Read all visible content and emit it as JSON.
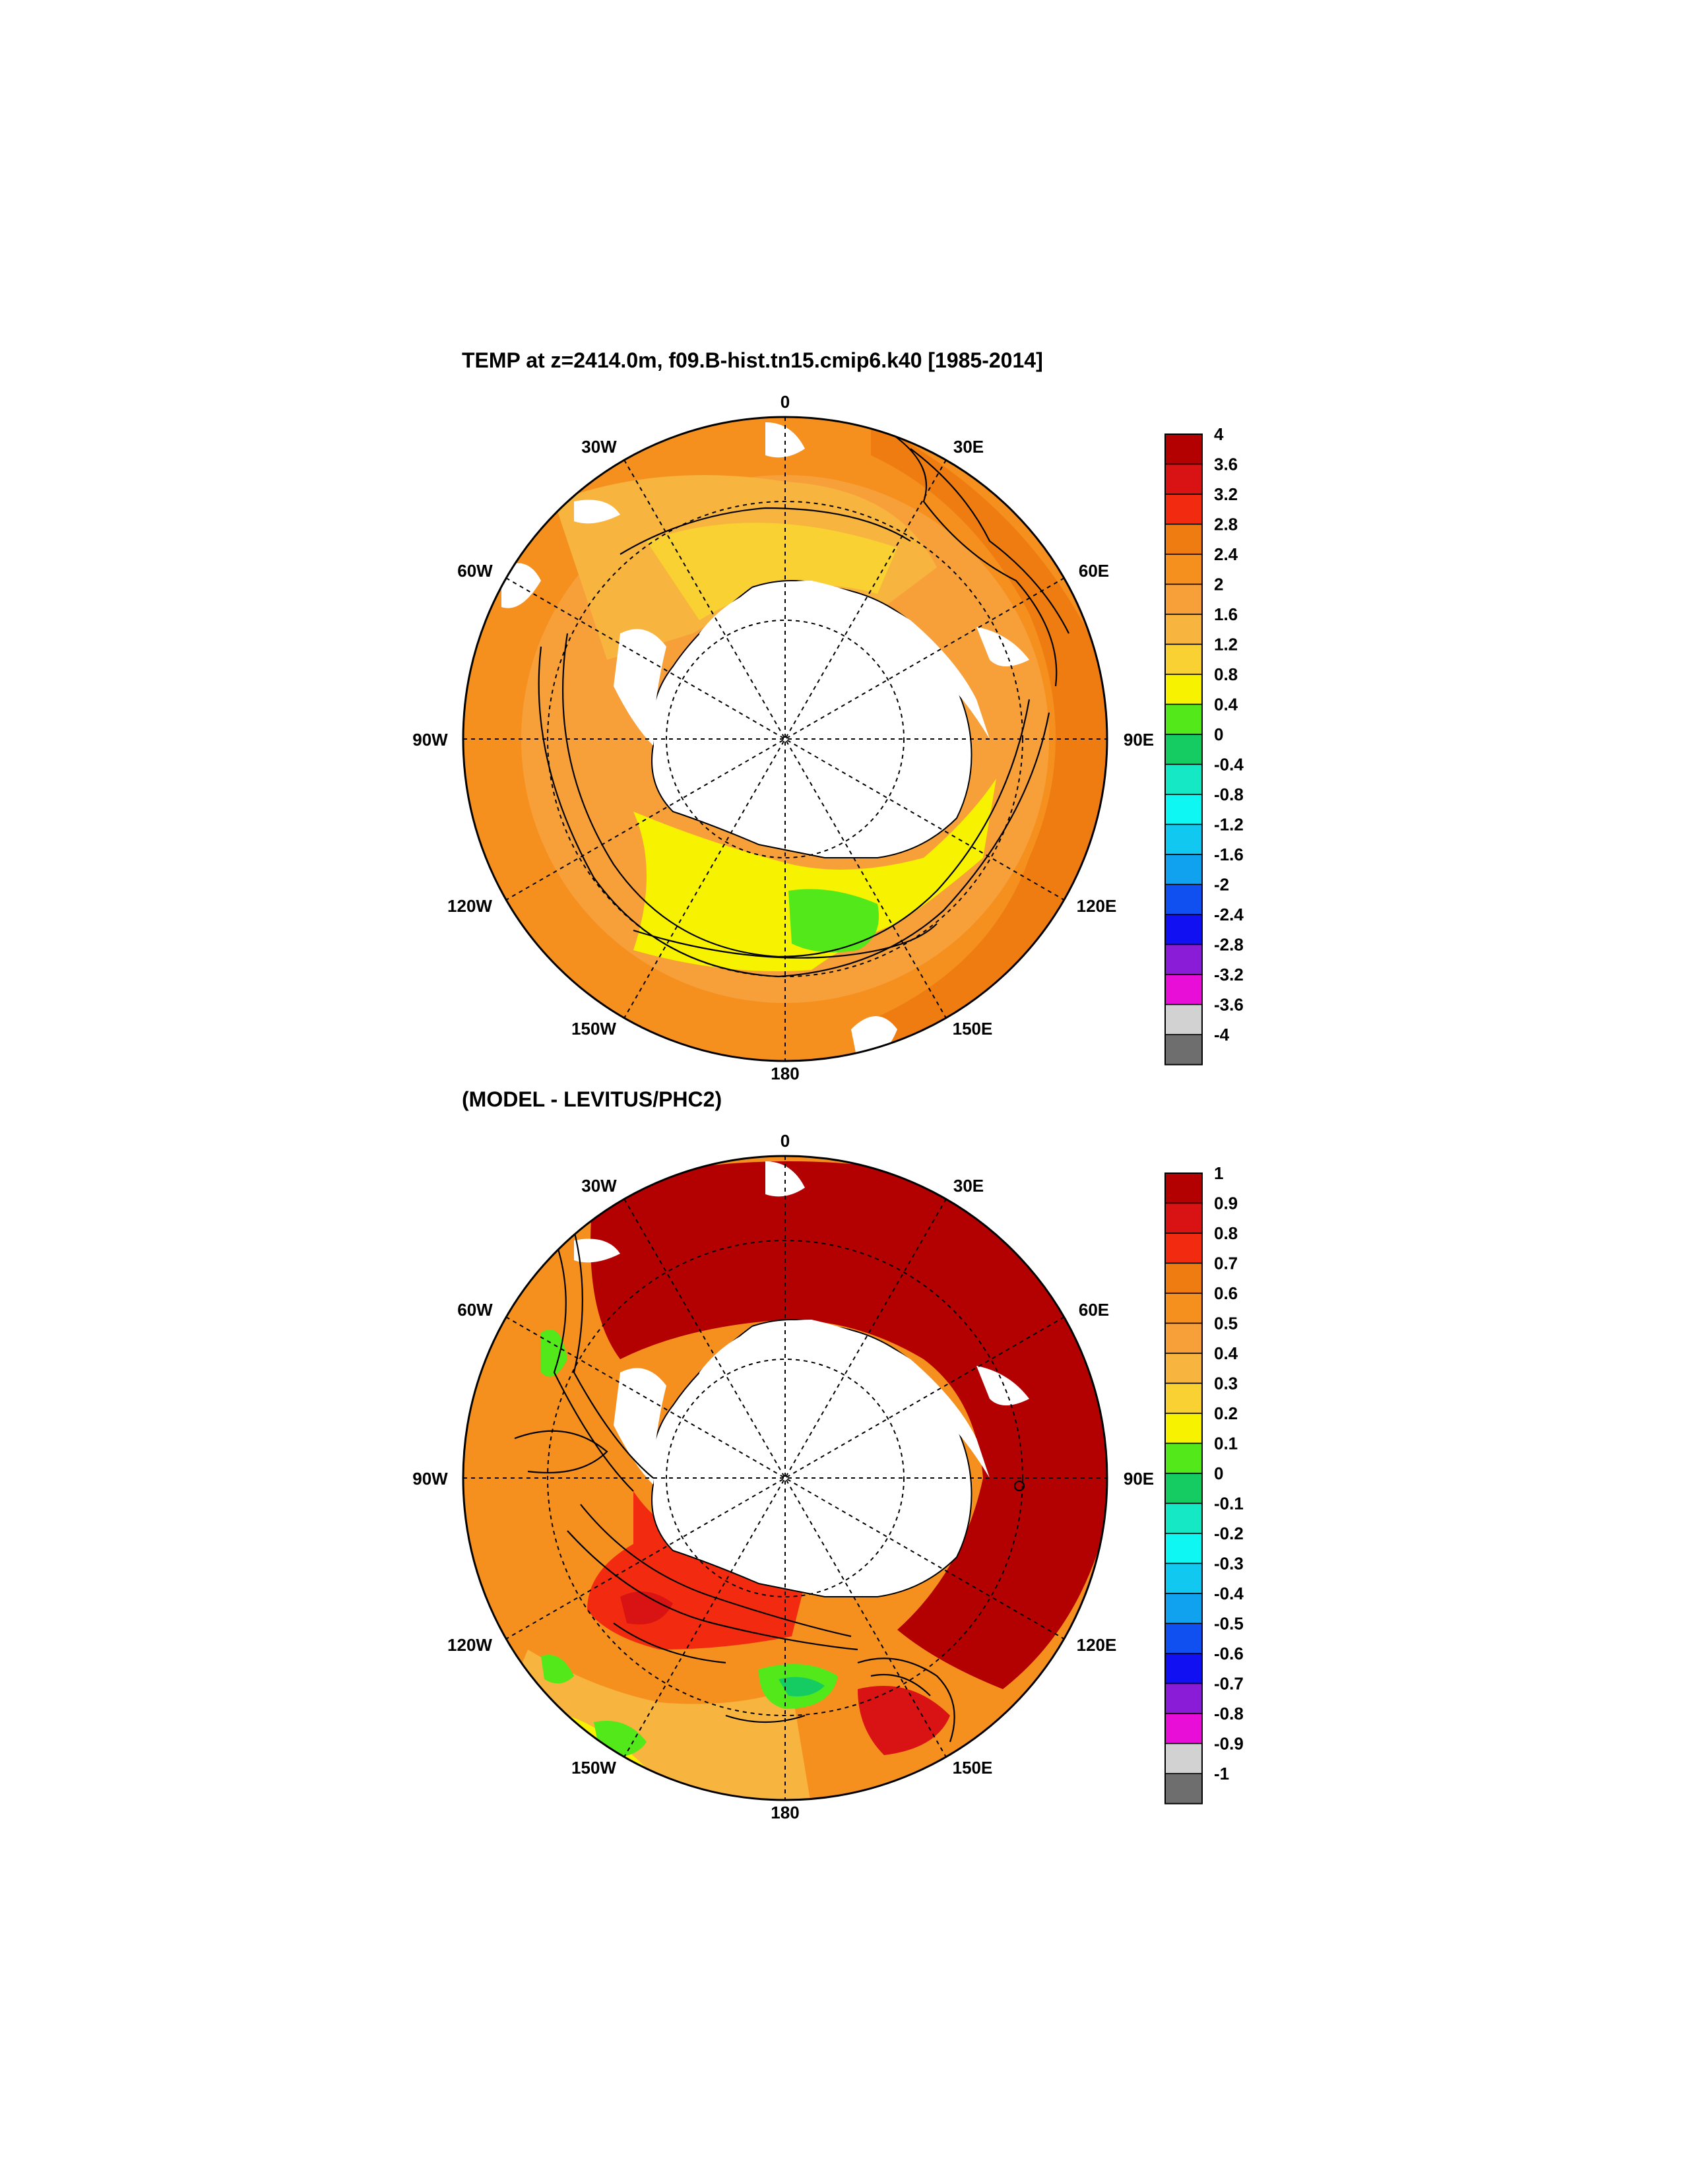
{
  "panels": [
    {
      "id": "top",
      "title": "TEMP at z=2414.0m, f09.B-hist.tn15.cmip6.k40 [1985-2014]",
      "longitude_labels": [
        "0",
        "30E",
        "60E",
        "90E",
        "120E",
        "150E",
        "180",
        "150W",
        "120W",
        "90W",
        "60W",
        "30W"
      ],
      "colorbar": {
        "labels": [
          "4",
          "3.6",
          "3.2",
          "2.8",
          "2.4",
          "2",
          "1.6",
          "1.2",
          "0.8",
          "0.4",
          "0",
          "-0.4",
          "-0.8",
          "-1.2",
          "-1.6",
          "-2",
          "-2.4",
          "-2.8",
          "-3.2",
          "-3.6",
          "-4"
        ],
        "colors": [
          "#b30000",
          "#d91313",
          "#f22b10",
          "#ee7c10",
          "#f5901f",
          "#f7a03a",
          "#f7b43e",
          "#f9d132",
          "#f6f200",
          "#52e81a",
          "#14cc62",
          "#14e8c4",
          "#0ff7f2",
          "#10c8f0",
          "#10a2ee",
          "#1050f0",
          "#1010f2",
          "#8a1bd6",
          "#e80ed8",
          "#d2d2d2",
          "#6e6e6e"
        ]
      }
    },
    {
      "id": "bottom",
      "title": "(MODEL - LEVITUS/PHC2)",
      "longitude_labels": [
        "0",
        "30E",
        "60E",
        "90E",
        "120E",
        "150E",
        "180",
        "150W",
        "120W",
        "90W",
        "60W",
        "30W"
      ],
      "colorbar": {
        "labels": [
          "1",
          "0.9",
          "0.8",
          "0.7",
          "0.6",
          "0.5",
          "0.4",
          "0.3",
          "0.2",
          "0.1",
          "0",
          "-0.1",
          "-0.2",
          "-0.3",
          "-0.4",
          "-0.5",
          "-0.6",
          "-0.7",
          "-0.8",
          "-0.9",
          "-1"
        ],
        "colors": [
          "#b30000",
          "#d91313",
          "#f22b10",
          "#ee7c10",
          "#f5901f",
          "#f7a03a",
          "#f7b43e",
          "#f9d132",
          "#f6f200",
          "#52e81a",
          "#14cc62",
          "#14e8c4",
          "#0ff7f2",
          "#10c8f0",
          "#10a2ee",
          "#1050f0",
          "#1010f2",
          "#8a1bd6",
          "#e80ed8",
          "#d2d2d2",
          "#6e6e6e"
        ]
      }
    }
  ]
}
